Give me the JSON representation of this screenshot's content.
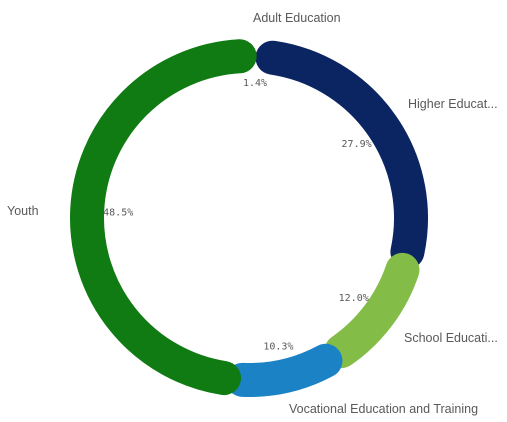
{
  "chart_data": {
    "type": "pie",
    "donut": true,
    "title": "",
    "legend": "none",
    "slices": [
      {
        "label": "Adult Education",
        "display_label": "Adult Education",
        "value": 1.4,
        "value_label": "1.4%",
        "color": "#f2d93b"
      },
      {
        "label": "Higher Education",
        "display_label": "Higher Educat...",
        "value": 27.9,
        "value_label": "27.9%",
        "color": "#0b2462"
      },
      {
        "label": "School Education",
        "display_label": "School Educati...",
        "value": 12.0,
        "value_label": "12.0%",
        "color": "#83bc47"
      },
      {
        "label": "Vocational Education and Training",
        "display_label": "Vocational Education and Training",
        "value": 10.3,
        "value_label": "10.3%",
        "color": "#1b82c6"
      },
      {
        "label": "Youth",
        "display_label": "Youth",
        "value": 48.5,
        "value_label": "48.5%",
        "color": "#0f7b12"
      }
    ]
  }
}
